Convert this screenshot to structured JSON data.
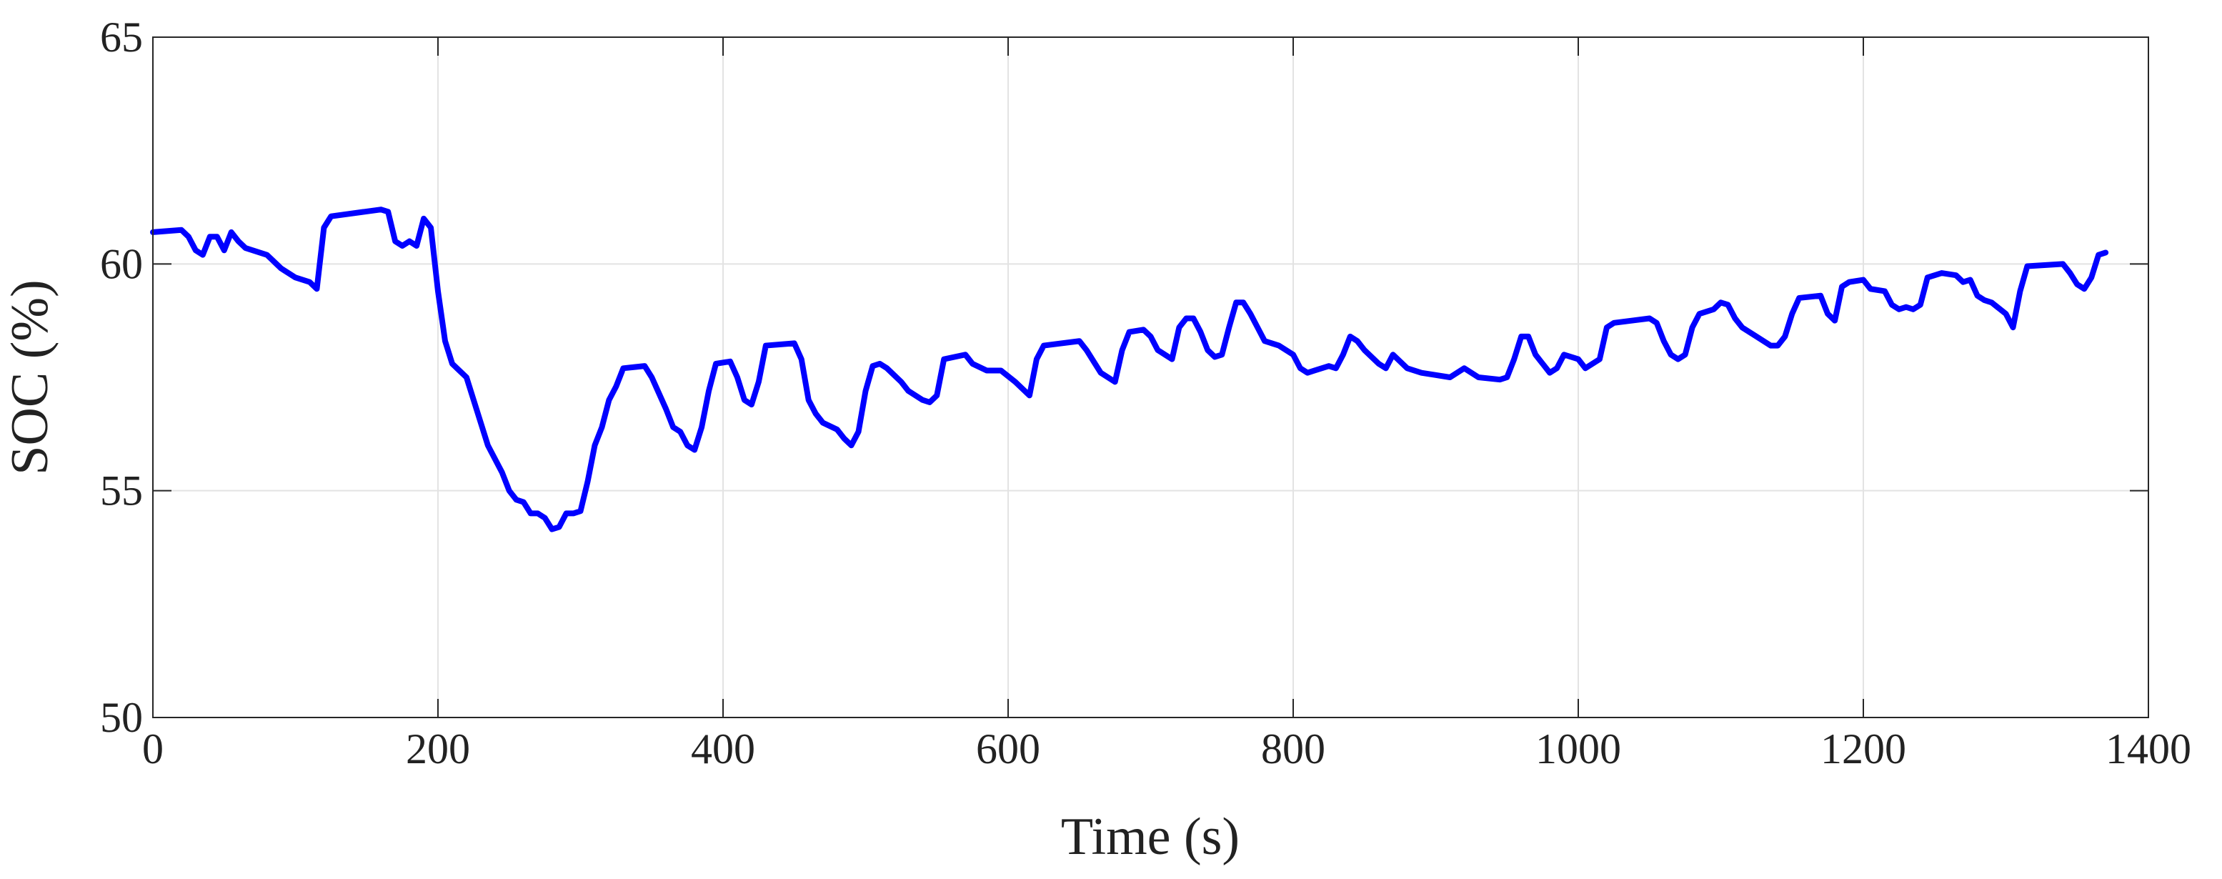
{
  "chart_data": {
    "type": "line",
    "x_label": "Time (s)",
    "y_label": "SOC (%)",
    "xlim": [
      0,
      1400
    ],
    "xticks": [
      0,
      200,
      400,
      600,
      800,
      1000,
      1200,
      1400
    ],
    "ylim": [
      50,
      65
    ],
    "yticks": [
      50,
      55,
      60,
      65
    ],
    "grid": true,
    "x": [
      0,
      20,
      25,
      30,
      35,
      40,
      45,
      50,
      55,
      60,
      65,
      80,
      90,
      100,
      110,
      115,
      120,
      125,
      160,
      165,
      170,
      175,
      180,
      185,
      190,
      195,
      200,
      205,
      210,
      220,
      230,
      235,
      245,
      250,
      255,
      260,
      265,
      270,
      275,
      280,
      285,
      290,
      295,
      300,
      305,
      310,
      315,
      320,
      325,
      330,
      345,
      350,
      360,
      365,
      370,
      375,
      380,
      385,
      390,
      395,
      405,
      410,
      415,
      420,
      425,
      430,
      450,
      455,
      460,
      465,
      470,
      480,
      485,
      490,
      495,
      500,
      505,
      510,
      515,
      525,
      530,
      540,
      545,
      550,
      555,
      570,
      575,
      585,
      595,
      605,
      615,
      620,
      625,
      650,
      655,
      665,
      670,
      675,
      680,
      685,
      695,
      700,
      705,
      710,
      715,
      720,
      725,
      730,
      735,
      740,
      745,
      750,
      755,
      760,
      765,
      770,
      775,
      780,
      790,
      800,
      805,
      810,
      815,
      825,
      830,
      835,
      840,
      845,
      850,
      860,
      865,
      870,
      880,
      890,
      900,
      910,
      915,
      920,
      925,
      930,
      945,
      950,
      955,
      960,
      965,
      970,
      975,
      980,
      985,
      990,
      1000,
      1005,
      1015,
      1020,
      1025,
      1050,
      1055,
      1060,
      1065,
      1070,
      1075,
      1080,
      1085,
      1095,
      1100,
      1105,
      1110,
      1115,
      1125,
      1130,
      1135,
      1140,
      1145,
      1150,
      1155,
      1170,
      1175,
      1180,
      1185,
      1190,
      1200,
      1205,
      1215,
      1220,
      1225,
      1230,
      1235,
      1240,
      1245,
      1255,
      1265,
      1270,
      1275,
      1280,
      1285,
      1290,
      1300,
      1305,
      1310,
      1315,
      1340,
      1345,
      1350,
      1355,
      1360,
      1365,
      1370
    ],
    "series": [
      {
        "name": "SOC",
        "color": "#0000ff",
        "values": [
          60.7,
          60.75,
          60.6,
          60.3,
          60.2,
          60.6,
          60.6,
          60.3,
          60.7,
          60.5,
          60.35,
          60.2,
          59.9,
          59.7,
          59.6,
          59.45,
          60.8,
          61.05,
          61.2,
          61.15,
          60.5,
          60.4,
          60.5,
          60.4,
          61.0,
          60.8,
          59.4,
          58.3,
          57.8,
          57.5,
          56.5,
          56.0,
          55.4,
          55.0,
          54.8,
          54.75,
          54.5,
          54.5,
          54.4,
          54.15,
          54.2,
          54.5,
          54.5,
          54.55,
          55.2,
          56.0,
          56.4,
          57.0,
          57.3,
          57.7,
          57.75,
          57.5,
          56.8,
          56.4,
          56.3,
          56.0,
          55.9,
          56.4,
          57.2,
          57.8,
          57.85,
          57.5,
          57.0,
          56.9,
          57.4,
          58.2,
          58.25,
          57.9,
          57.0,
          56.7,
          56.5,
          56.35,
          56.15,
          56.0,
          56.3,
          57.2,
          57.75,
          57.8,
          57.7,
          57.4,
          57.2,
          57.0,
          56.95,
          57.1,
          57.9,
          58.0,
          57.8,
          57.65,
          57.65,
          57.4,
          57.1,
          57.9,
          58.2,
          58.3,
          58.1,
          57.6,
          57.5,
          57.4,
          58.1,
          58.5,
          58.55,
          58.4,
          58.1,
          58.0,
          57.9,
          58.6,
          58.8,
          58.8,
          58.5,
          58.1,
          57.95,
          58.0,
          58.6,
          59.15,
          59.15,
          58.9,
          58.6,
          58.3,
          58.2,
          58.0,
          57.7,
          57.6,
          57.65,
          57.75,
          57.7,
          58.0,
          58.4,
          58.3,
          58.1,
          57.8,
          57.7,
          58.0,
          57.7,
          57.6,
          57.55,
          57.5,
          57.6,
          57.7,
          57.6,
          57.5,
          57.45,
          57.5,
          57.9,
          58.4,
          58.4,
          58.0,
          57.8,
          57.6,
          57.7,
          58.0,
          57.9,
          57.7,
          57.9,
          58.6,
          58.7,
          58.8,
          58.7,
          58.3,
          58.0,
          57.9,
          58.0,
          58.6,
          58.9,
          59.0,
          59.15,
          59.1,
          58.8,
          58.6,
          58.4,
          58.3,
          58.2,
          58.2,
          58.4,
          58.9,
          59.25,
          59.3,
          58.9,
          58.75,
          59.5,
          59.6,
          59.65,
          59.45,
          59.4,
          59.1,
          59.0,
          59.05,
          59.0,
          59.1,
          59.7,
          59.8,
          59.75,
          59.6,
          59.65,
          59.3,
          59.2,
          59.15,
          58.9,
          58.6,
          59.4,
          59.95,
          60.0,
          59.8,
          59.55,
          59.45,
          59.7,
          60.2,
          60.25
        ]
      }
    ]
  }
}
